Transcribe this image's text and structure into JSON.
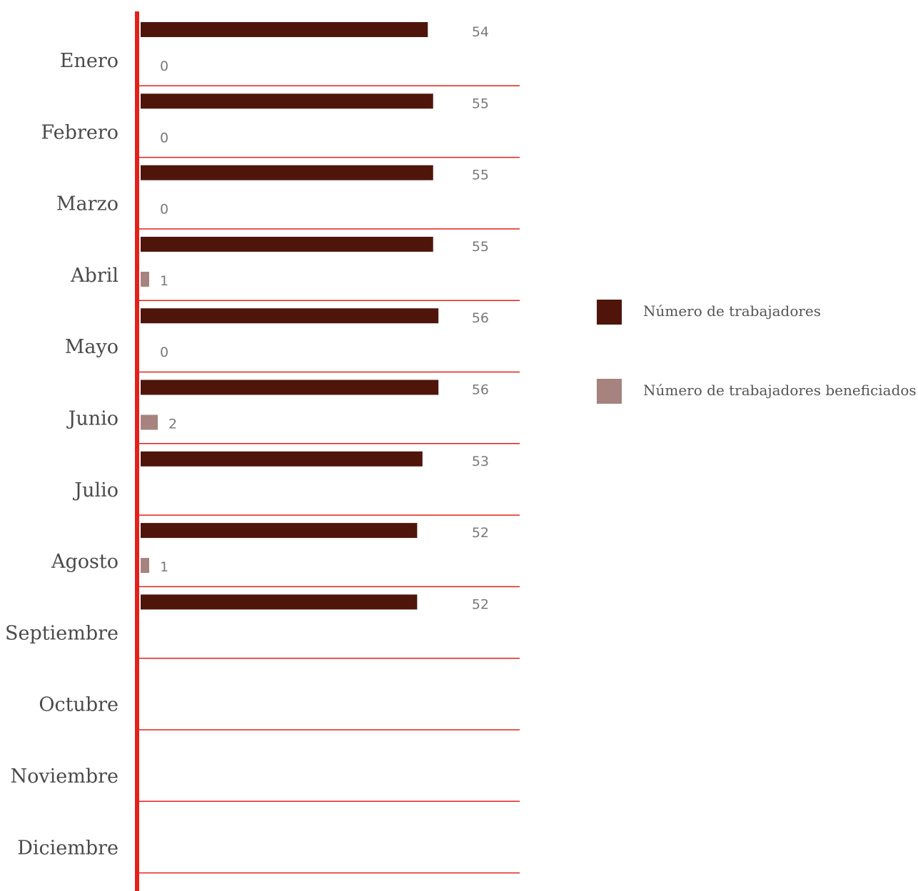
{
  "chart_data": {
    "type": "bar",
    "orientation": "horizontal",
    "categories": [
      "Enero",
      "Febrero",
      "Marzo",
      "Abril",
      "Mayo",
      "Junio",
      "Julio",
      "Agosto",
      "Septiembre",
      "Octubre",
      "Noviembre",
      "Diciembre"
    ],
    "series": [
      {
        "name": "Número de trabajadores",
        "color": "#4f150b",
        "values": [
          54,
          55,
          55,
          55,
          56,
          56,
          53,
          52,
          52,
          null,
          null,
          null
        ]
      },
      {
        "name": "Número de trabajadores beneficiados",
        "color": "#a6837e",
        "values": [
          0,
          0,
          0,
          1,
          0,
          2,
          null,
          1,
          null,
          null,
          null,
          null
        ]
      }
    ],
    "axis_color": "#e32119",
    "legend_position": "right"
  }
}
